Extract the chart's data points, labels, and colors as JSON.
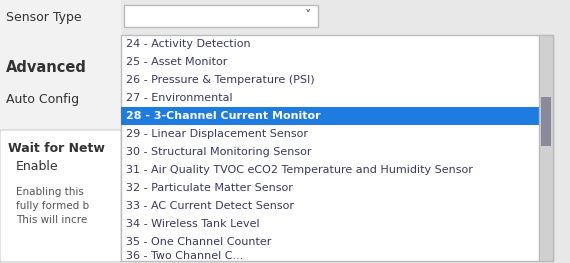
{
  "bg_color": "#e8e8e8",
  "left_panel_bg": "#f5f5f5",
  "label_color": "#333333",
  "sensor_type_label": "Sensor Type",
  "advanced_label": "Advanced",
  "auto_config_label": "Auto Config",
  "wait_label": "Wait for Netw",
  "enable_label": "Enable",
  "enabling_text": "Enabling this",
  "fully_text": "fully formed b",
  "this_text": "This will incre",
  "dropdown_bg": "#ffffff",
  "dropdown_border": "#bbbbbb",
  "highlight_color": "#1e7be0",
  "highlight_text_color": "#ffffff",
  "normal_text_color": "#3a3a5c",
  "scrollbar_bg": "#d0d0d0",
  "scrollbar_thumb": "#8a8a9a",
  "items": [
    "24 - Activity Detection",
    "25 - Asset Monitor",
    "26 - Pressure & Temperature (PSI)",
    "27 - Environmental",
    "28 - 3-Channel Current Monitor",
    "29 - Linear Displacement Sensor",
    "30 - Structural Monitoring Sensor",
    "31 - Air Quality TVOC eCO2 Temperature and Humidity Sensor",
    "32 - Particulate Matter Sensor",
    "33 - AC Current Detect Sensor",
    "34 - Wireless Tank Level",
    "35 - One Channel Counter"
  ],
  "partial_item": "36 - Two Channel C...",
  "highlighted_index": 4,
  "font_size": 8.0,
  "label_font_size": 9.0,
  "advanced_font_size": 10.5,
  "small_font_size": 7.5
}
